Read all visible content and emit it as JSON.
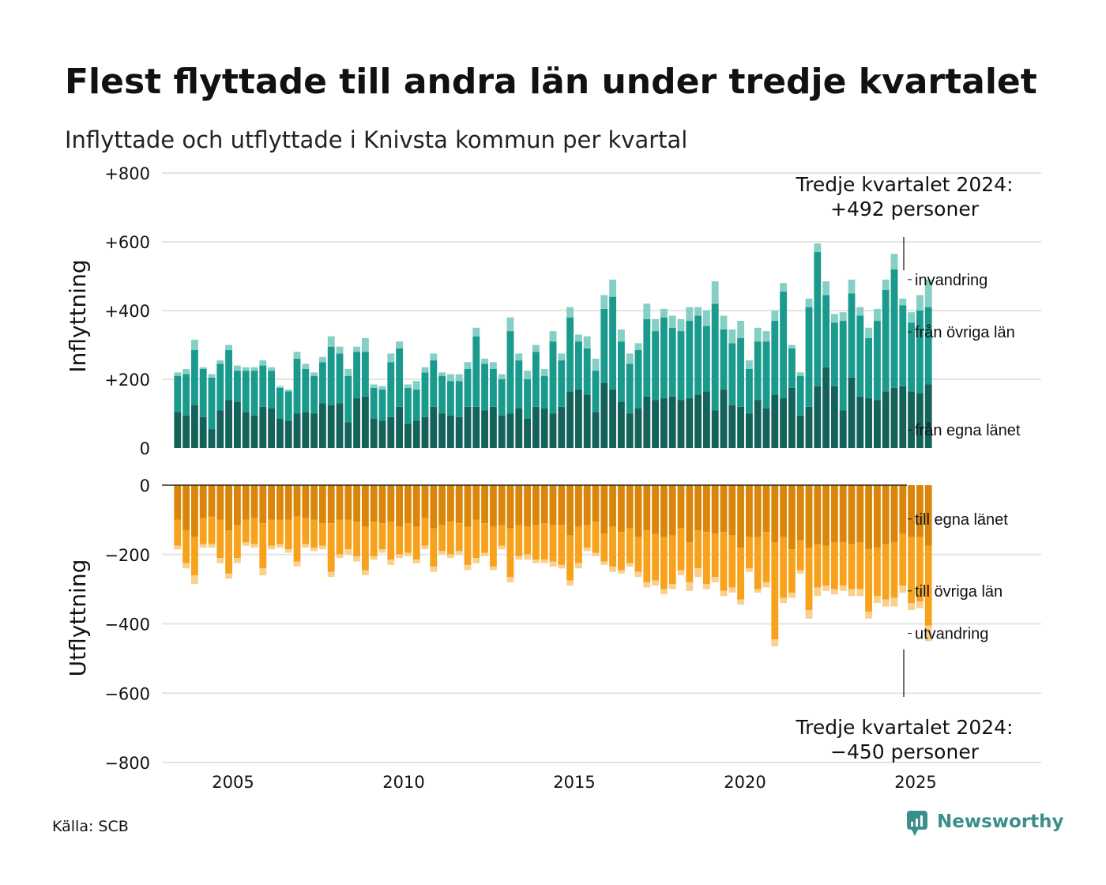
{
  "title": "Flest flyttade till andra län under tredje kvartalet",
  "subtitle": "Inflyttade och utflyttade i Knivsta kommun per kvartal",
  "source": "Källa: SCB",
  "brand": "Newsworthy",
  "colors": {
    "in_own": "#14625a",
    "in_other": "#1a9a8c",
    "in_immig": "#86cfc5",
    "out_own": "#d9860b",
    "out_other": "#f7a21d",
    "out_emig": "#f9d08e",
    "grid": "#e3e3e3",
    "logo": "#3a8f8a"
  },
  "chart_data": {
    "type": "bar",
    "stacked": true,
    "x_ticks": [
      "2005",
      "2010",
      "2015",
      "2020",
      "2025"
    ],
    "top_panel": {
      "ylabel": "Inflyttning",
      "ylim": [
        0,
        800
      ],
      "y_ticks": [
        "0",
        "+200",
        "+400",
        "+600",
        "+800"
      ],
      "segment_labels": [
        "från egna länet",
        "från övriga län",
        "invandring"
      ],
      "annotation": [
        "Tredje kvartalet 2024:",
        "+492 personer"
      ]
    },
    "bottom_panel": {
      "ylabel": "Utflyttning",
      "ylim": [
        -800,
        0
      ],
      "y_ticks": [
        "0",
        "−200",
        "−400",
        "−600",
        "−800"
      ],
      "segment_labels": [
        "till egna länet",
        "till övriga län",
        "utvandring"
      ],
      "annotation": [
        "Tredje kvartalet 2024:",
        "−450 personer"
      ]
    },
    "start_year": 2003,
    "start_quarter": 2,
    "in_own": [
      105,
      95,
      125,
      90,
      55,
      110,
      140,
      135,
      105,
      95,
      120,
      115,
      85,
      80,
      100,
      105,
      100,
      130,
      125,
      130,
      75,
      145,
      150,
      85,
      80,
      90,
      120,
      70,
      80,
      90,
      120,
      100,
      95,
      90,
      120,
      120,
      110,
      120,
      95,
      100,
      115,
      85,
      120,
      115,
      100,
      120,
      165,
      170,
      155,
      105,
      190,
      170,
      135,
      100,
      115,
      150,
      140,
      145,
      150,
      140,
      145,
      155,
      165,
      110,
      170,
      125,
      120,
      100,
      140,
      115,
      155,
      145,
      175,
      95,
      120,
      180,
      235,
      180,
      110,
      205,
      150,
      145,
      140,
      165,
      175,
      180,
      165,
      160,
      185
    ],
    "in_other": [
      105,
      120,
      160,
      140,
      150,
      135,
      145,
      90,
      120,
      130,
      120,
      110,
      90,
      85,
      160,
      125,
      110,
      120,
      170,
      145,
      135,
      135,
      130,
      90,
      90,
      160,
      170,
      105,
      90,
      130,
      135,
      110,
      100,
      105,
      110,
      205,
      135,
      110,
      105,
      240,
      140,
      115,
      160,
      95,
      210,
      135,
      215,
      140,
      135,
      120,
      215,
      270,
      175,
      145,
      170,
      225,
      200,
      235,
      200,
      200,
      225,
      230,
      190,
      310,
      175,
      180,
      200,
      130,
      170,
      195,
      215,
      310,
      115,
      115,
      290,
      390,
      210,
      185,
      260,
      245,
      235,
      175,
      230,
      295,
      345,
      235,
      200,
      240,
      225
    ],
    "in_immig": [
      10,
      15,
      30,
      5,
      10,
      10,
      15,
      15,
      10,
      10,
      15,
      10,
      5,
      5,
      20,
      15,
      10,
      15,
      30,
      20,
      20,
      15,
      40,
      10,
      10,
      25,
      20,
      10,
      25,
      15,
      20,
      10,
      20,
      20,
      20,
      25,
      15,
      20,
      15,
      40,
      20,
      25,
      20,
      20,
      30,
      20,
      30,
      20,
      35,
      35,
      40,
      50,
      35,
      30,
      20,
      45,
      35,
      25,
      35,
      35,
      40,
      25,
      45,
      65,
      40,
      40,
      50,
      25,
      40,
      30,
      30,
      25,
      10,
      10,
      25,
      25,
      40,
      25,
      25,
      40,
      25,
      30,
      35,
      30,
      45,
      20,
      30,
      45,
      80
    ],
    "out_own": [
      100,
      130,
      150,
      95,
      90,
      100,
      130,
      115,
      100,
      95,
      110,
      100,
      100,
      100,
      90,
      95,
      100,
      110,
      110,
      100,
      100,
      105,
      120,
      105,
      110,
      105,
      120,
      110,
      120,
      95,
      125,
      115,
      105,
      110,
      120,
      100,
      110,
      120,
      115,
      125,
      115,
      120,
      115,
      110,
      115,
      115,
      145,
      120,
      115,
      105,
      140,
      120,
      135,
      125,
      150,
      130,
      140,
      150,
      145,
      125,
      165,
      130,
      135,
      140,
      135,
      145,
      180,
      150,
      150,
      135,
      165,
      150,
      185,
      160,
      180,
      170,
      175,
      165,
      165,
      170,
      165,
      185,
      180,
      170,
      165,
      140,
      150,
      150,
      175
    ],
    "out_own_extra": "none",
    "out_other": [
      75,
      95,
      110,
      75,
      80,
      110,
      125,
      95,
      65,
      75,
      130,
      75,
      70,
      85,
      130,
      75,
      80,
      65,
      140,
      100,
      85,
      100,
      125,
      100,
      75,
      110,
      80,
      85,
      95,
      80,
      110,
      75,
      95,
      80,
      110,
      110,
      85,
      115,
      60,
      140,
      90,
      80,
      100,
      105,
      105,
      115,
      130,
      105,
      65,
      90,
      80,
      115,
      110,
      100,
      100,
      150,
      135,
      150,
      140,
      120,
      115,
      110,
      150,
      125,
      170,
      150,
      150,
      90,
      150,
      145,
      280,
      175,
      125,
      85,
      180,
      125,
      115,
      135,
      125,
      130,
      135,
      180,
      140,
      160,
      160,
      150,
      190,
      185,
      230
    ],
    "out_emig": [
      10,
      15,
      25,
      10,
      10,
      15,
      15,
      15,
      10,
      10,
      20,
      10,
      10,
      10,
      15,
      10,
      10,
      10,
      15,
      10,
      15,
      15,
      15,
      10,
      10,
      15,
      10,
      10,
      10,
      10,
      15,
      10,
      10,
      10,
      15,
      15,
      10,
      10,
      10,
      15,
      10,
      15,
      10,
      10,
      15,
      10,
      15,
      15,
      10,
      10,
      10,
      15,
      10,
      10,
      15,
      15,
      15,
      15,
      15,
      15,
      25,
      25,
      15,
      15,
      15,
      15,
      15,
      10,
      10,
      15,
      20,
      15,
      15,
      10,
      25,
      25,
      15,
      15,
      15,
      20,
      20,
      20,
      20,
      20,
      25,
      20,
      20,
      20,
      45
    ]
  }
}
